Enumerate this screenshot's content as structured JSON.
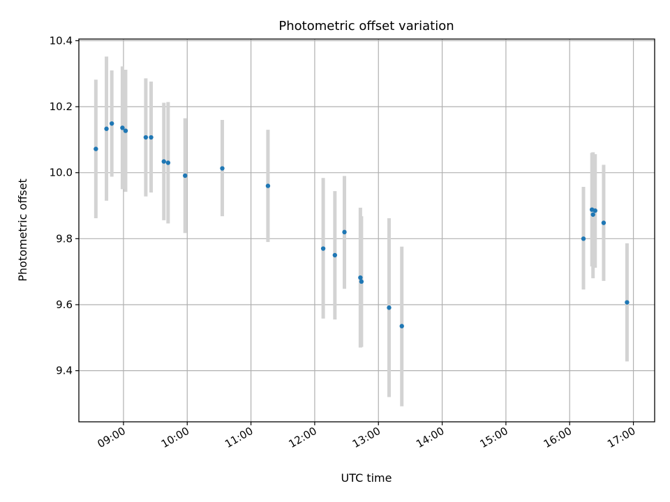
{
  "chart_data": {
    "type": "scatter",
    "title": "Photometric offset variation",
    "xlabel": "UTC time",
    "ylabel": "Photometric offset",
    "xlim": [
      "08:18",
      "17:20"
    ],
    "ylim": [
      9.245,
      10.405
    ],
    "grid": true,
    "x_ticks": [
      "09:00",
      "10:00",
      "11:00",
      "12:00",
      "13:00",
      "14:00",
      "15:00",
      "16:00",
      "17:00"
    ],
    "y_ticks": [
      "9.4",
      "9.6",
      "9.8",
      "10.0",
      "10.2",
      "10.4"
    ],
    "series": [
      {
        "marker_color": "#1f77b4",
        "errorbar_color": "#d3d3d3",
        "points": [
          {
            "x": "08:34",
            "y": 10.072,
            "ylo": 9.862,
            "yhi": 10.282
          },
          {
            "x": "08:44",
            "y": 10.133,
            "ylo": 9.915,
            "yhi": 10.352
          },
          {
            "x": "08:49",
            "y": 10.149,
            "ylo": 9.988,
            "yhi": 10.31
          },
          {
            "x": "08:59",
            "y": 10.136,
            "ylo": 9.95,
            "yhi": 10.322
          },
          {
            "x": "09:02",
            "y": 10.127,
            "ylo": 9.942,
            "yhi": 10.312
          },
          {
            "x": "09:21",
            "y": 10.107,
            "ylo": 9.928,
            "yhi": 10.286
          },
          {
            "x": "09:26",
            "y": 10.107,
            "ylo": 9.94,
            "yhi": 10.276
          },
          {
            "x": "09:38",
            "y": 10.034,
            "ylo": 9.856,
            "yhi": 10.212
          },
          {
            "x": "09:42",
            "y": 10.03,
            "ylo": 9.846,
            "yhi": 10.214
          },
          {
            "x": "09:58",
            "y": 9.991,
            "ylo": 9.817,
            "yhi": 10.165
          },
          {
            "x": "10:33",
            "y": 10.013,
            "ylo": 9.868,
            "yhi": 10.16
          },
          {
            "x": "11:16",
            "y": 9.96,
            "ylo": 9.79,
            "yhi": 10.13
          },
          {
            "x": "12:08",
            "y": 9.77,
            "ylo": 9.558,
            "yhi": 9.984
          },
          {
            "x": "12:19",
            "y": 9.75,
            "ylo": 9.555,
            "yhi": 9.944
          },
          {
            "x": "12:28",
            "y": 9.82,
            "ylo": 9.648,
            "yhi": 9.99
          },
          {
            "x": "12:43",
            "y": 9.682,
            "ylo": 9.47,
            "yhi": 9.894
          },
          {
            "x": "12:44",
            "y": 9.67,
            "ylo": 9.472,
            "yhi": 9.868
          },
          {
            "x": "13:10",
            "y": 9.591,
            "ylo": 9.32,
            "yhi": 9.862
          },
          {
            "x": "13:22",
            "y": 9.535,
            "ylo": 9.292,
            "yhi": 9.776
          },
          {
            "x": "16:13",
            "y": 9.8,
            "ylo": 9.646,
            "yhi": 9.957
          },
          {
            "x": "16:21",
            "y": 9.888,
            "ylo": 9.716,
            "yhi": 10.06
          },
          {
            "x": "16:22",
            "y": 9.873,
            "ylo": 9.68,
            "yhi": 10.062
          },
          {
            "x": "16:24",
            "y": 9.885,
            "ylo": 9.712,
            "yhi": 10.056
          },
          {
            "x": "16:32",
            "y": 9.848,
            "ylo": 9.672,
            "yhi": 10.024
          },
          {
            "x": "16:54",
            "y": 9.607,
            "ylo": 9.428,
            "yhi": 9.786
          }
        ]
      }
    ]
  }
}
